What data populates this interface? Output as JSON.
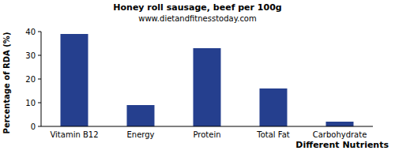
{
  "chart_data": {
    "type": "bar",
    "title": "Honey roll sausage, beef per 100g",
    "subtitle": "www.dietandfitnesstoday.com",
    "x_label": "Different Nutrients",
    "y_label": "Percentage of RDA (%)",
    "categories": [
      "Vitamin B12",
      "Energy",
      "Protein",
      "Total Fat",
      "Carbohydrate"
    ],
    "values": [
      39,
      9,
      33,
      16,
      2
    ],
    "color": "#253f8e",
    "ylim": [
      0,
      40
    ],
    "yticks": [
      0,
      10,
      20,
      30,
      40
    ],
    "grid": false
  }
}
